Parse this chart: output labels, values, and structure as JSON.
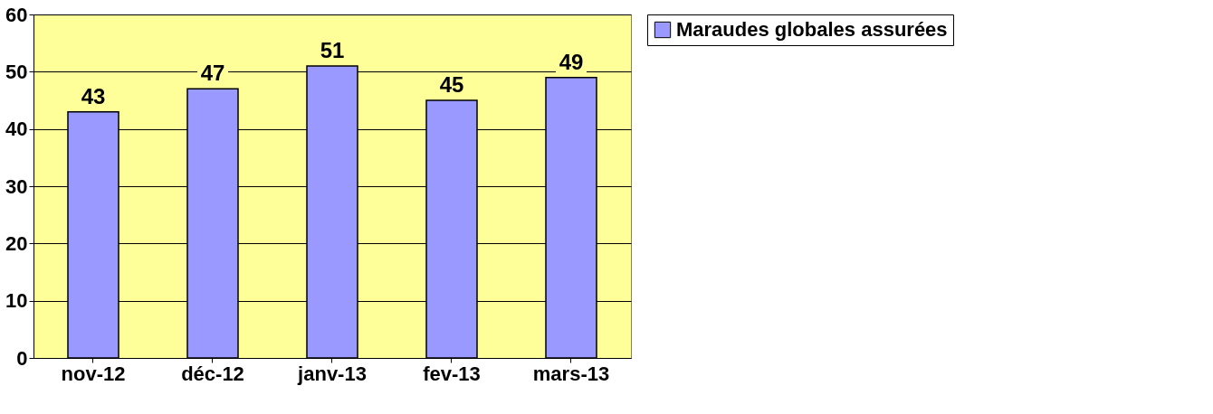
{
  "chart_data": {
    "type": "bar",
    "categories": [
      "nov-12",
      "déc-12",
      "janv-13",
      "fev-13",
      "mars-13"
    ],
    "series": [
      {
        "name": "Maraudes globales assurées",
        "color": "#9999ff",
        "values": [
          43,
          47,
          51,
          45,
          49
        ]
      }
    ],
    "ylim": [
      0,
      60
    ],
    "yticks": [
      0,
      10,
      20,
      30,
      40,
      50,
      60
    ],
    "grid": "y",
    "legend": "right",
    "data_labels": true
  }
}
